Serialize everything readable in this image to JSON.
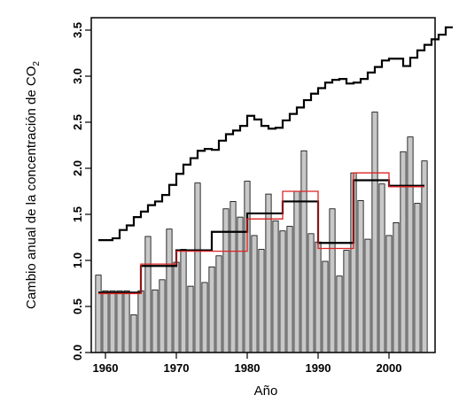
{
  "chart_data": {
    "type": "bar",
    "xlabel": "Año",
    "ylabel": {
      "main": "Cambio anual de la concentración de CO",
      "subscript": "2"
    },
    "xlim": [
      1958,
      2006.5
    ],
    "ylim": [
      0,
      3.5
    ],
    "xticks": [
      1960,
      1970,
      1980,
      1990,
      2000
    ],
    "yticks": [
      "0.0",
      "0.5",
      "1.0",
      "1.5",
      "2.0",
      "2.5",
      "3.0",
      "3.5"
    ],
    "grid": false,
    "legend": "none",
    "colors": {
      "bars": "#c8c8c8",
      "bar_outline": "#000000",
      "black_steps": "#000000",
      "red_steps": "#dd2222"
    },
    "years": [
      1959,
      1960,
      1961,
      1962,
      1963,
      1964,
      1965,
      1966,
      1967,
      1968,
      1969,
      1970,
      1971,
      1972,
      1973,
      1974,
      1975,
      1976,
      1977,
      1978,
      1979,
      1980,
      1981,
      1982,
      1983,
      1984,
      1985,
      1986,
      1987,
      1988,
      1989,
      1990,
      1991,
      1992,
      1993,
      1994,
      1995,
      1996,
      1997,
      1998,
      1999,
      2000,
      2001,
      2002,
      2003,
      2004,
      2005
    ],
    "values": [
      0.84,
      0.67,
      0.67,
      0.67,
      0.67,
      0.41,
      0.67,
      1.26,
      0.68,
      0.79,
      1.34,
      0.98,
      1.12,
      0.72,
      1.84,
      0.76,
      0.93,
      1.05,
      1.56,
      1.64,
      1.47,
      1.86,
      1.27,
      1.12,
      1.72,
      1.43,
      1.32,
      1.37,
      1.75,
      2.19,
      1.29,
      1.2,
      0.99,
      1.56,
      0.83,
      1.11,
      1.95,
      1.65,
      1.23,
      2.61,
      1.83,
      1.27,
      1.41,
      2.18,
      2.34,
      1.62,
      2.08
    ],
    "series": [
      {
        "color": "black",
        "points": [
          [
            1959,
            1.22
          ],
          [
            1960,
            1.22
          ],
          [
            1961,
            1.24
          ],
          [
            1962,
            1.33
          ],
          [
            1963,
            1.38
          ],
          [
            1964,
            1.47
          ],
          [
            1965,
            1.53
          ],
          [
            1966,
            1.6
          ],
          [
            1967,
            1.64
          ],
          [
            1968,
            1.71
          ],
          [
            1969,
            1.82
          ],
          [
            1970,
            1.94
          ],
          [
            1971,
            2.04
          ],
          [
            1972,
            2.11
          ],
          [
            1973,
            2.19
          ],
          [
            1974,
            2.21
          ],
          [
            1975,
            2.2
          ],
          [
            1976,
            2.3
          ],
          [
            1977,
            2.37
          ],
          [
            1978,
            2.41
          ],
          [
            1979,
            2.46
          ],
          [
            1980,
            2.57
          ],
          [
            1981,
            2.53
          ],
          [
            1982,
            2.46
          ],
          [
            1983,
            2.43
          ],
          [
            1984,
            2.44
          ],
          [
            1985,
            2.52
          ],
          [
            1986,
            2.59
          ],
          [
            1987,
            2.66
          ],
          [
            1988,
            2.74
          ],
          [
            1989,
            2.81
          ],
          [
            1990,
            2.87
          ],
          [
            1991,
            2.93
          ],
          [
            1992,
            2.96
          ],
          [
            1993,
            2.97
          ],
          [
            1994,
            2.92
          ],
          [
            1995,
            2.93
          ],
          [
            1996,
            2.97
          ],
          [
            1997,
            3.04
          ],
          [
            1998,
            3.1
          ],
          [
            1999,
            3.17
          ],
          [
            2000,
            3.19
          ],
          [
            2001,
            3.19
          ],
          [
            2002,
            3.11
          ],
          [
            2003,
            3.2
          ],
          [
            2004,
            3.28
          ],
          [
            2005,
            3.34
          ],
          [
            2006,
            3.4
          ],
          [
            2007,
            3.45
          ],
          [
            2008,
            3.53
          ],
          [
            2009,
            3.53
          ]
        ]
      },
      {
        "color": "black",
        "points": [
          [
            1959,
            0.65
          ],
          [
            1965,
            0.65
          ],
          [
            1965,
            0.94
          ],
          [
            1970,
            0.94
          ],
          [
            1970,
            1.11
          ],
          [
            1975,
            1.11
          ],
          [
            1975,
            1.31
          ],
          [
            1980,
            1.31
          ],
          [
            1980,
            1.51
          ],
          [
            1985,
            1.51
          ],
          [
            1985,
            1.64
          ],
          [
            1990,
            1.64
          ],
          [
            1990,
            1.19
          ],
          [
            1995,
            1.19
          ],
          [
            1995,
            1.87
          ],
          [
            2000,
            1.87
          ],
          [
            2000,
            1.81
          ],
          [
            2005,
            1.81
          ]
        ]
      },
      {
        "color": "red",
        "points": [
          [
            1959,
            0.64
          ],
          [
            1965,
            0.64
          ],
          [
            1965,
            0.96
          ],
          [
            1970,
            0.96
          ],
          [
            1970,
            1.1
          ],
          [
            1975,
            1.1
          ],
          [
            1975,
            1.1
          ],
          [
            1980,
            1.1
          ],
          [
            1980,
            1.45
          ],
          [
            1985,
            1.45
          ],
          [
            1985,
            1.75
          ],
          [
            1990,
            1.75
          ],
          [
            1990,
            1.13
          ],
          [
            1995,
            1.13
          ],
          [
            1995,
            1.95
          ],
          [
            2000,
            1.95
          ],
          [
            2000,
            1.8
          ],
          [
            2005,
            1.8
          ]
        ]
      }
    ]
  }
}
